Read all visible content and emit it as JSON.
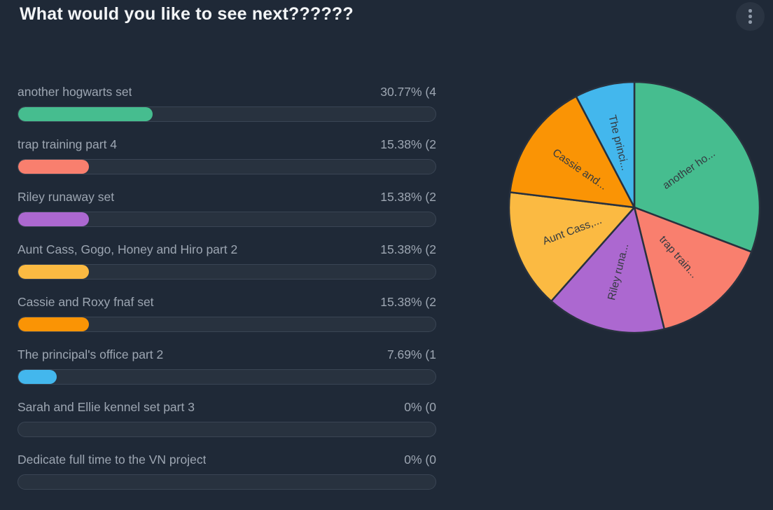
{
  "header": {
    "title": "What would you like to see next??????"
  },
  "menu": {
    "icon": "kebab-menu"
  },
  "poll": {
    "options": [
      {
        "label": "another hogwarts set",
        "percent": 30.77,
        "votes": 4,
        "percent_label": "30.77% (4",
        "color": "#46BD8F"
      },
      {
        "label": "trap training part 4",
        "percent": 15.38,
        "votes": 2,
        "percent_label": "15.38% (2",
        "color": "#F97F6E"
      },
      {
        "label": "Riley runaway set",
        "percent": 15.38,
        "votes": 2,
        "percent_label": "15.38% (2",
        "color": "#AC68D0"
      },
      {
        "label": "Aunt Cass, Gogo, Honey and Hiro part 2",
        "percent": 15.38,
        "votes": 2,
        "percent_label": "15.38% (2",
        "color": "#FBBA42"
      },
      {
        "label": "Cassie and Roxy fnaf set",
        "percent": 15.38,
        "votes": 2,
        "percent_label": "15.38% (2",
        "color": "#FA9405"
      },
      {
        "label": "The principal's office part 2",
        "percent": 7.69,
        "votes": 1,
        "percent_label": "7.69% (1",
        "color": "#43B7ED"
      },
      {
        "label": "Sarah and Ellie kennel set part 3",
        "percent": 0,
        "votes": 0,
        "percent_label": "0% (0",
        "color": ""
      },
      {
        "label": "Dedicate full time to the VN project",
        "percent": 0,
        "votes": 0,
        "percent_label": "0% (0",
        "color": ""
      }
    ]
  },
  "chart_data": [
    {
      "type": "bar",
      "title": "What would you like to see next??????",
      "categories": [
        "another hogwarts set",
        "trap training part 4",
        "Riley runaway set",
        "Aunt Cass, Gogo, Honey and Hiro part 2",
        "Cassie and Roxy fnaf set",
        "The principal's office part 2",
        "Sarah and Ellie kennel set part 3",
        "Dedicate full time to the VN project"
      ],
      "values": [
        30.77,
        15.38,
        15.38,
        15.38,
        15.38,
        7.69,
        0,
        0
      ],
      "votes": [
        4,
        2,
        2,
        2,
        2,
        1,
        0,
        0
      ],
      "value_labels": [
        "30.77% (4",
        "15.38% (2",
        "15.38% (2",
        "15.38% (2",
        "15.38% (2",
        "7.69% (1",
        "0% (0",
        "0% (0"
      ],
      "colors": [
        "#46BD8F",
        "#F97F6E",
        "#AC68D0",
        "#FBBA42",
        "#FA9405",
        "#43B7ED",
        "",
        ""
      ],
      "xlabel": "",
      "ylabel": "",
      "xlim": [
        0,
        100
      ],
      "orientation": "horizontal",
      "grid": false
    },
    {
      "type": "pie",
      "labels": [
        "another hogwarts set",
        "trap training part 4",
        "Riley runaway set",
        "Aunt Cass, Gogo, Honey and Hiro part 2",
        "Cassie and Roxy fnaf set",
        "The principal's office part 2"
      ],
      "display_labels": [
        "another ho...",
        "trap train...",
        "Riley runa...",
        "Aunt Cass,...",
        "Cassie and...",
        "The princi..."
      ],
      "values": [
        30.77,
        15.38,
        15.38,
        15.38,
        15.38,
        7.69
      ],
      "colors": [
        "#46BD8F",
        "#F97F6E",
        "#AC68D0",
        "#FBBA42",
        "#FA9405",
        "#43B7ED"
      ],
      "start_angle_deg": 0,
      "direction": "clockwise",
      "label_position": "inside",
      "legend": false
    }
  ],
  "colors": {
    "background": "#1F2937",
    "track_fill": "#28323F",
    "track_border": "#3A4554",
    "text_primary": "#F3F5F7",
    "text_secondary": "#9DA6B2",
    "pie_label": "#343A40",
    "pie_stroke": "#28313E"
  }
}
